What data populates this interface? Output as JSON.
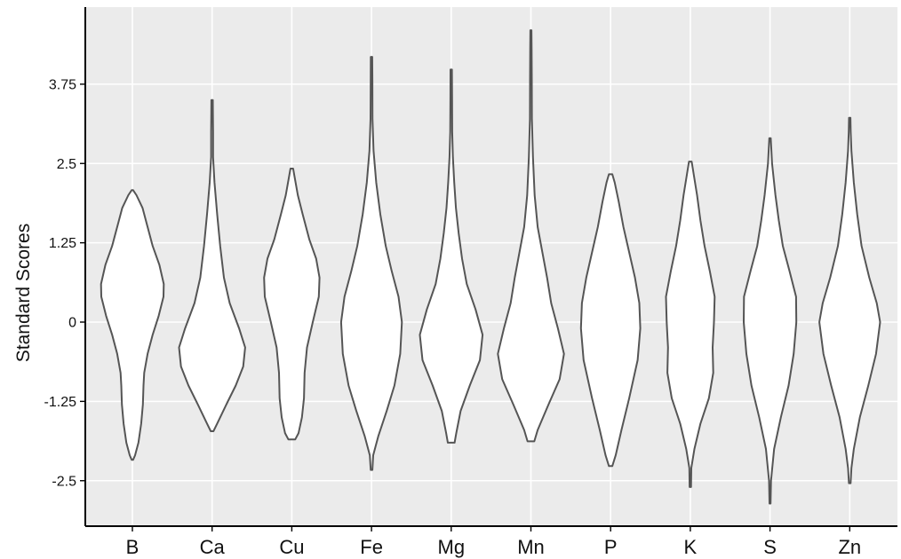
{
  "chart_data": {
    "type": "violin",
    "title": "",
    "xlabel": "",
    "ylabel": "Standard Scores",
    "ylim": [
      -3.22,
      5.0
    ],
    "grid": true,
    "legend": "none",
    "categories": [
      "B",
      "Ca",
      "Cu",
      "Fe",
      "Mg",
      "Mn",
      "P",
      "K",
      "S",
      "Zn"
    ],
    "yticks": [
      {
        "value": 3.75,
        "label": "3.75"
      },
      {
        "value": 2.5,
        "label": "2.5"
      },
      {
        "value": 1.25,
        "label": "1.25"
      },
      {
        "value": 0,
        "label": "0"
      },
      {
        "value": -1.25,
        "label": "-1.25"
      },
      {
        "value": -2.5,
        "label": "-2.5"
      }
    ],
    "series": [
      {
        "category": "B",
        "min": -2.17,
        "max": 2.08,
        "profile": [
          [
            -2.17,
            0.02
          ],
          [
            -2.1,
            0.08
          ],
          [
            -1.9,
            0.18
          ],
          [
            -1.6,
            0.26
          ],
          [
            -1.3,
            0.31
          ],
          [
            -1.0,
            0.33
          ],
          [
            -0.8,
            0.35
          ],
          [
            -0.5,
            0.45
          ],
          [
            -0.2,
            0.6
          ],
          [
            0.1,
            0.78
          ],
          [
            0.4,
            0.92
          ],
          [
            0.6,
            0.93
          ],
          [
            0.9,
            0.8
          ],
          [
            1.2,
            0.6
          ],
          [
            1.5,
            0.45
          ],
          [
            1.8,
            0.3
          ],
          [
            2.0,
            0.12
          ],
          [
            2.08,
            0.02
          ]
        ]
      },
      {
        "category": "Ca",
        "min": -1.72,
        "max": 3.5,
        "profile": [
          [
            -1.72,
            0.04
          ],
          [
            -1.6,
            0.15
          ],
          [
            -1.3,
            0.42
          ],
          [
            -1.0,
            0.7
          ],
          [
            -0.7,
            0.92
          ],
          [
            -0.4,
            0.98
          ],
          [
            -0.1,
            0.8
          ],
          [
            0.3,
            0.52
          ],
          [
            0.7,
            0.35
          ],
          [
            1.2,
            0.24
          ],
          [
            1.7,
            0.15
          ],
          [
            2.2,
            0.07
          ],
          [
            2.6,
            0.03
          ],
          [
            3.0,
            0.03
          ],
          [
            3.3,
            0.025
          ],
          [
            3.5,
            0.02
          ]
        ]
      },
      {
        "category": "Cu",
        "min": -1.85,
        "max": 2.42,
        "profile": [
          [
            -1.85,
            0.1
          ],
          [
            -1.75,
            0.2
          ],
          [
            -1.5,
            0.3
          ],
          [
            -1.2,
            0.36
          ],
          [
            -0.8,
            0.38
          ],
          [
            -0.4,
            0.45
          ],
          [
            0.0,
            0.62
          ],
          [
            0.4,
            0.8
          ],
          [
            0.7,
            0.82
          ],
          [
            1.0,
            0.72
          ],
          [
            1.3,
            0.52
          ],
          [
            1.7,
            0.32
          ],
          [
            2.0,
            0.18
          ],
          [
            2.3,
            0.08
          ],
          [
            2.42,
            0.04
          ]
        ]
      },
      {
        "category": "Fe",
        "min": -2.33,
        "max": 4.18,
        "profile": [
          [
            -2.33,
            0.025
          ],
          [
            -2.1,
            0.05
          ],
          [
            -1.8,
            0.2
          ],
          [
            -1.4,
            0.45
          ],
          [
            -1.0,
            0.68
          ],
          [
            -0.5,
            0.85
          ],
          [
            0.0,
            0.9
          ],
          [
            0.4,
            0.8
          ],
          [
            0.8,
            0.6
          ],
          [
            1.2,
            0.42
          ],
          [
            1.7,
            0.26
          ],
          [
            2.2,
            0.14
          ],
          [
            2.7,
            0.06
          ],
          [
            3.2,
            0.03
          ],
          [
            3.8,
            0.025
          ],
          [
            4.18,
            0.02
          ]
        ]
      },
      {
        "category": "Mg",
        "min": -1.9,
        "max": 3.98,
        "profile": [
          [
            -1.9,
            0.1
          ],
          [
            -1.75,
            0.15
          ],
          [
            -1.4,
            0.28
          ],
          [
            -1.0,
            0.55
          ],
          [
            -0.6,
            0.85
          ],
          [
            -0.2,
            0.93
          ],
          [
            0.2,
            0.72
          ],
          [
            0.6,
            0.46
          ],
          [
            1.0,
            0.32
          ],
          [
            1.4,
            0.22
          ],
          [
            1.8,
            0.14
          ],
          [
            2.2,
            0.09
          ],
          [
            2.6,
            0.05
          ],
          [
            3.0,
            0.03
          ],
          [
            3.5,
            0.025
          ],
          [
            3.98,
            0.02
          ]
        ]
      },
      {
        "category": "Mn",
        "min": -1.88,
        "max": 4.6,
        "profile": [
          [
            -1.88,
            0.1
          ],
          [
            -1.7,
            0.2
          ],
          [
            -1.3,
            0.52
          ],
          [
            -0.9,
            0.85
          ],
          [
            -0.5,
            0.98
          ],
          [
            -0.1,
            0.8
          ],
          [
            0.3,
            0.6
          ],
          [
            0.7,
            0.48
          ],
          [
            1.1,
            0.34
          ],
          [
            1.5,
            0.2
          ],
          [
            2.0,
            0.11
          ],
          [
            2.6,
            0.06
          ],
          [
            3.2,
            0.03
          ],
          [
            3.8,
            0.025
          ],
          [
            4.3,
            0.02
          ],
          [
            4.6,
            0.015
          ]
        ]
      },
      {
        "category": "P",
        "min": -2.27,
        "max": 2.33,
        "profile": [
          [
            -2.27,
            0.05
          ],
          [
            -2.1,
            0.15
          ],
          [
            -1.7,
            0.32
          ],
          [
            -1.2,
            0.55
          ],
          [
            -0.6,
            0.8
          ],
          [
            -0.1,
            0.88
          ],
          [
            0.3,
            0.85
          ],
          [
            0.7,
            0.72
          ],
          [
            1.1,
            0.55
          ],
          [
            1.5,
            0.38
          ],
          [
            1.9,
            0.24
          ],
          [
            2.2,
            0.12
          ],
          [
            2.33,
            0.05
          ]
        ]
      },
      {
        "category": "K",
        "min": -2.6,
        "max": 2.53,
        "profile": [
          [
            -2.6,
            0.02
          ],
          [
            -2.3,
            0.03
          ],
          [
            -2.0,
            0.12
          ],
          [
            -1.6,
            0.3
          ],
          [
            -1.2,
            0.55
          ],
          [
            -0.8,
            0.68
          ],
          [
            -0.4,
            0.66
          ],
          [
            0.0,
            0.7
          ],
          [
            0.4,
            0.72
          ],
          [
            0.8,
            0.58
          ],
          [
            1.2,
            0.42
          ],
          [
            1.6,
            0.3
          ],
          [
            2.0,
            0.2
          ],
          [
            2.4,
            0.08
          ],
          [
            2.53,
            0.04
          ]
        ]
      },
      {
        "category": "S",
        "min": -2.86,
        "max": 2.9,
        "profile": [
          [
            -2.86,
            0.015
          ],
          [
            -2.5,
            0.03
          ],
          [
            -2.0,
            0.12
          ],
          [
            -1.5,
            0.32
          ],
          [
            -1.0,
            0.55
          ],
          [
            -0.5,
            0.7
          ],
          [
            0.0,
            0.78
          ],
          [
            0.4,
            0.77
          ],
          [
            0.8,
            0.58
          ],
          [
            1.2,
            0.38
          ],
          [
            1.6,
            0.26
          ],
          [
            2.0,
            0.16
          ],
          [
            2.5,
            0.06
          ],
          [
            2.9,
            0.02
          ]
        ]
      },
      {
        "category": "Zn",
        "min": -2.54,
        "max": 3.22,
        "profile": [
          [
            -2.54,
            0.025
          ],
          [
            -2.3,
            0.05
          ],
          [
            -2.0,
            0.12
          ],
          [
            -1.5,
            0.3
          ],
          [
            -1.0,
            0.55
          ],
          [
            -0.5,
            0.78
          ],
          [
            0.0,
            0.9
          ],
          [
            0.3,
            0.8
          ],
          [
            0.7,
            0.58
          ],
          [
            1.2,
            0.35
          ],
          [
            1.7,
            0.22
          ],
          [
            2.2,
            0.12
          ],
          [
            2.7,
            0.05
          ],
          [
            3.0,
            0.03
          ],
          [
            3.22,
            0.02
          ]
        ]
      }
    ]
  }
}
